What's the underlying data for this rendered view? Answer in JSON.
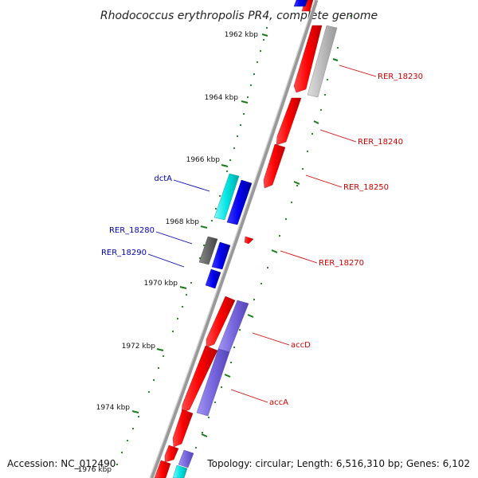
{
  "title": "Rhodococcus erythropolis PR4, complete genome",
  "footer": {
    "accession": "Accession: NC_012490",
    "topology": "Topology: circular; Length: 6,516,310 bp; Genes: 6,102"
  },
  "ticks": [
    "1962 kbp",
    "1964 kbp",
    "1966 kbp",
    "1968 kbp",
    "1970 kbp",
    "1972 kbp",
    "1974 kbp",
    "1976 kbp"
  ],
  "gene_labels": {
    "right": [
      "RER_18230",
      "RER_18240",
      "RER_18250",
      "RER_18270",
      "accD",
      "accA"
    ],
    "left": [
      "dctA",
      "RER_18280",
      "RER_18290"
    ]
  },
  "colors": {
    "forward_cds": "#ff0000",
    "reverse_cds": "#0000ee",
    "right_label": "#cc0000",
    "left_label": "#0000aa",
    "tick": "#1a7a1a",
    "backbone": "#888888",
    "rna_cyan": "#00e5e5",
    "gray_feature": "#bbbbbb",
    "dark_gray_feature": "#666666",
    "purple_feature": "#7766dd"
  }
}
